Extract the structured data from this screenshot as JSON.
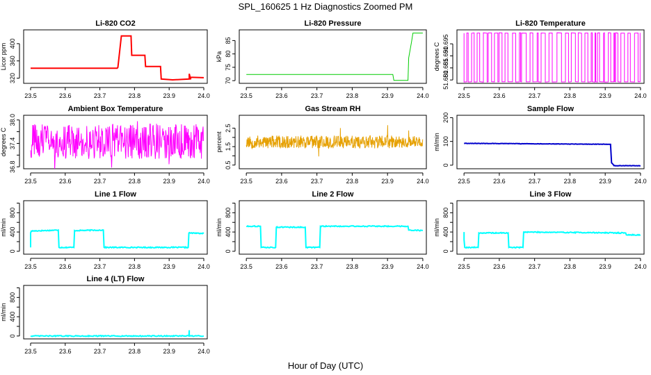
{
  "figure": {
    "title": "SPL_160625  1 Hz Diagnostics Zoomed PM",
    "xlabel": "Hour of Day (UTC)"
  },
  "chart_data": [
    {
      "type": "line",
      "id": "li820-co2",
      "title": "Li-820 CO2",
      "ylabel": "Licor ppm",
      "color": "#ff0000",
      "xlim": [
        23.48,
        24.01
      ],
      "ylim": [
        308,
        432
      ],
      "xticks": [
        23.5,
        23.6,
        23.7,
        23.8,
        23.9,
        24.0
      ],
      "xtick_labels": [
        "23.5",
        "23.6",
        "23.7",
        "23.8",
        "23.9",
        "24.0"
      ],
      "yticks": [
        320,
        360,
        400
      ],
      "ytick_labels": [
        "320",
        "360",
        "400"
      ],
      "series": [
        {
          "name": "CO2",
          "x": [
            23.5,
            23.75,
            23.752,
            23.762,
            23.79,
            23.792,
            23.83,
            23.832,
            23.875,
            23.877,
            23.91,
            23.958,
            23.958,
            23.962,
            23.962,
            24.0
          ],
          "y": [
            343,
            343,
            345,
            418,
            418,
            373,
            373,
            347,
            347,
            318,
            316,
            318,
            330,
            317,
            322,
            321
          ]
        }
      ]
    },
    {
      "type": "line",
      "id": "li820-pressure",
      "title": "Li-820 Pressure",
      "ylabel": "kPa",
      "color": "#00cc00",
      "xlim": [
        23.48,
        24.01
      ],
      "ylim": [
        69,
        89
      ],
      "xticks": [
        23.5,
        23.6,
        23.7,
        23.8,
        23.9,
        24.0
      ],
      "xtick_labels": [
        "23.5",
        "23.6",
        "23.7",
        "23.8",
        "23.9",
        "24.0"
      ],
      "yticks": [
        70,
        75,
        80,
        85
      ],
      "ytick_labels": [
        "70",
        "75",
        "80",
        "85"
      ],
      "series": [
        {
          "name": "Pressure",
          "x": [
            23.5,
            23.915,
            23.918,
            23.958,
            23.96,
            23.968,
            23.972,
            24.0
          ],
          "y": [
            72.3,
            72.3,
            70.1,
            70.1,
            78.5,
            84.5,
            87.8,
            87.8
          ]
        }
      ]
    },
    {
      "type": "line",
      "id": "li820-temperature",
      "title": "Li-820 Temperature",
      "ylabel": "degrees C",
      "color": "#ff00ff",
      "xlim": [
        23.48,
        24.01
      ],
      "ylim": [
        51.6786,
        51.7008
      ],
      "xticks": [
        23.5,
        23.6,
        23.7,
        23.8,
        23.9,
        24.0
      ],
      "xtick_labels": [
        "23.5",
        "23.6",
        "23.7",
        "23.8",
        "23.9",
        "24.0"
      ],
      "yticks": [
        51.68,
        51.685,
        51.69,
        51.695
      ],
      "ytick_labels": [
        "51.680",
        "51.685",
        "51.690",
        "51.695"
      ],
      "series": [
        {
          "name": "Temperature",
          "x": [
            23.5,
            24.0
          ],
          "y": [
            51.6995,
            51.6995
          ]
        }
      ]
    },
    {
      "type": "line",
      "id": "ambient-box-temperature",
      "title": "Ambient Box Temperature",
      "ylabel": "degrees C",
      "color": "#ff00ff",
      "xlim": [
        23.48,
        24.01
      ],
      "ylim": [
        36.75,
        38.12
      ],
      "xticks": [
        23.5,
        23.6,
        23.7,
        23.8,
        23.9,
        24.0
      ],
      "xtick_labels": [
        "23.5",
        "23.6",
        "23.7",
        "23.8",
        "23.9",
        "24.0"
      ],
      "yticks": [
        36.8,
        37.4,
        38.0
      ],
      "ytick_labels": [
        "36.8",
        "37.4",
        "38.0"
      ],
      "yticks_minor": [
        37.1,
        37.7
      ],
      "series": [
        {
          "name": "Ambient",
          "x": [
            23.5,
            24.0
          ],
          "y": [
            37.4,
            37.4
          ]
        }
      ]
    },
    {
      "type": "line",
      "id": "gas-stream-rh",
      "title": "Gas Stream RH",
      "ylabel": "percent",
      "color": "#e6a000",
      "xlim": [
        23.48,
        24.01
      ],
      "ylim": [
        0.3,
        3.2
      ],
      "xticks": [
        23.5,
        23.6,
        23.7,
        23.8,
        23.9,
        24.0
      ],
      "xtick_labels": [
        "23.5",
        "23.6",
        "23.7",
        "23.8",
        "23.9",
        "24.0"
      ],
      "yticks": [
        0.5,
        1.5,
        2.5
      ],
      "ytick_labels": [
        "0.5",
        "1.5",
        "2.5"
      ],
      "yticks_minor": [
        1.0,
        2.0
      ],
      "series": [
        {
          "name": "RH",
          "x": [
            23.5,
            24.0
          ],
          "y": [
            1.8,
            1.8
          ]
        }
      ]
    },
    {
      "type": "line",
      "id": "sample-flow",
      "title": "Sample Flow",
      "ylabel": "ml/min",
      "color": "#0000cc",
      "xlim": [
        23.48,
        24.01
      ],
      "ylim": [
        -15,
        210
      ],
      "xticks": [
        23.5,
        23.6,
        23.7,
        23.8,
        23.9,
        24.0
      ],
      "xtick_labels": [
        "23.5",
        "23.6",
        "23.7",
        "23.8",
        "23.9",
        "24.0"
      ],
      "yticks": [
        0,
        100,
        200
      ],
      "ytick_labels": [
        "0",
        "100",
        "200"
      ],
      "series": [
        {
          "name": "Sample",
          "x": [
            23.5,
            23.915,
            23.918,
            23.925,
            24.0
          ],
          "y": [
            92,
            88,
            10,
            -2,
            -2
          ]
        }
      ]
    },
    {
      "type": "line",
      "id": "line-1-flow",
      "title": "Line 1 Flow",
      "ylabel": "ml/min",
      "color": "#00ffff",
      "xlim": [
        23.48,
        24.01
      ],
      "ylim": [
        -60,
        1050
      ],
      "xticks": [
        23.5,
        23.6,
        23.7,
        23.8,
        23.9,
        24.0
      ],
      "xtick_labels": [
        "23.5",
        "23.6",
        "23.7",
        "23.8",
        "23.9",
        "24.0"
      ],
      "yticks": [
        0,
        400,
        800
      ],
      "ytick_labels": [
        "0",
        "400",
        "800"
      ],
      "yticks_minor": [
        200,
        600,
        1000
      ],
      "series": [
        {
          "name": "Line 1",
          "x": [
            23.5,
            23.5,
            23.502,
            23.58,
            23.582,
            23.625,
            23.627,
            23.71,
            23.712,
            23.955,
            23.957,
            24.0
          ],
          "y": [
            80,
            380,
            420,
            440,
            80,
            80,
            430,
            440,
            80,
            80,
            380,
            370
          ]
        }
      ]
    },
    {
      "type": "line",
      "id": "line-2-flow",
      "title": "Line 2 Flow",
      "ylabel": "ml/min",
      "color": "#00ffff",
      "xlim": [
        23.48,
        24.01
      ],
      "ylim": [
        -60,
        1050
      ],
      "xticks": [
        23.5,
        23.6,
        23.7,
        23.8,
        23.9,
        24.0
      ],
      "xtick_labels": [
        "23.5",
        "23.6",
        "23.7",
        "23.8",
        "23.9",
        "24.0"
      ],
      "yticks": [
        0,
        400,
        800
      ],
      "ytick_labels": [
        "0",
        "400",
        "800"
      ],
      "yticks_minor": [
        200,
        600,
        1000
      ],
      "series": [
        {
          "name": "Line 2",
          "x": [
            23.5,
            23.54,
            23.542,
            23.583,
            23.585,
            23.667,
            23.669,
            23.708,
            23.71,
            23.958,
            23.96,
            24.0
          ],
          "y": [
            520,
            520,
            80,
            80,
            500,
            500,
            80,
            80,
            520,
            520,
            440,
            430
          ]
        }
      ]
    },
    {
      "type": "line",
      "id": "line-3-flow",
      "title": "Line 3 Flow",
      "ylabel": "ml/min",
      "color": "#00ffff",
      "xlim": [
        23.48,
        24.01
      ],
      "ylim": [
        -60,
        1050
      ],
      "xticks": [
        23.5,
        23.6,
        23.7,
        23.8,
        23.9,
        24.0
      ],
      "xtick_labels": [
        "23.5",
        "23.6",
        "23.7",
        "23.8",
        "23.9",
        "24.0"
      ],
      "yticks": [
        0,
        400,
        800
      ],
      "ytick_labels": [
        "0",
        "400",
        "800"
      ],
      "yticks_minor": [
        200,
        600,
        1000
      ],
      "series": [
        {
          "name": "Line 3",
          "x": [
            23.5,
            23.5,
            23.502,
            23.54,
            23.542,
            23.625,
            23.627,
            23.667,
            23.669,
            23.958,
            23.96,
            24.0
          ],
          "y": [
            400,
            240,
            80,
            80,
            380,
            380,
            80,
            80,
            400,
            380,
            340,
            340
          ]
        }
      ]
    },
    {
      "type": "line",
      "id": "line-4-lt-flow",
      "title": "Line 4 (LT) Flow",
      "ylabel": "ml/min",
      "color": "#00ffff",
      "xlim": [
        23.48,
        24.01
      ],
      "ylim": [
        -60,
        1050
      ],
      "xticks": [
        23.5,
        23.6,
        23.7,
        23.8,
        23.9,
        24.0
      ],
      "xtick_labels": [
        "23.5",
        "23.6",
        "23.7",
        "23.8",
        "23.9",
        "24.0"
      ],
      "yticks": [
        0,
        400,
        800
      ],
      "ytick_labels": [
        "0",
        "400",
        "800"
      ],
      "yticks_minor": [
        200,
        600,
        1000
      ],
      "series": [
        {
          "name": "Line 4",
          "x": [
            23.5,
            23.957,
            23.958,
            23.958,
            23.96,
            24.0
          ],
          "y": [
            0,
            0,
            120,
            20,
            0,
            0
          ]
        }
      ]
    }
  ]
}
